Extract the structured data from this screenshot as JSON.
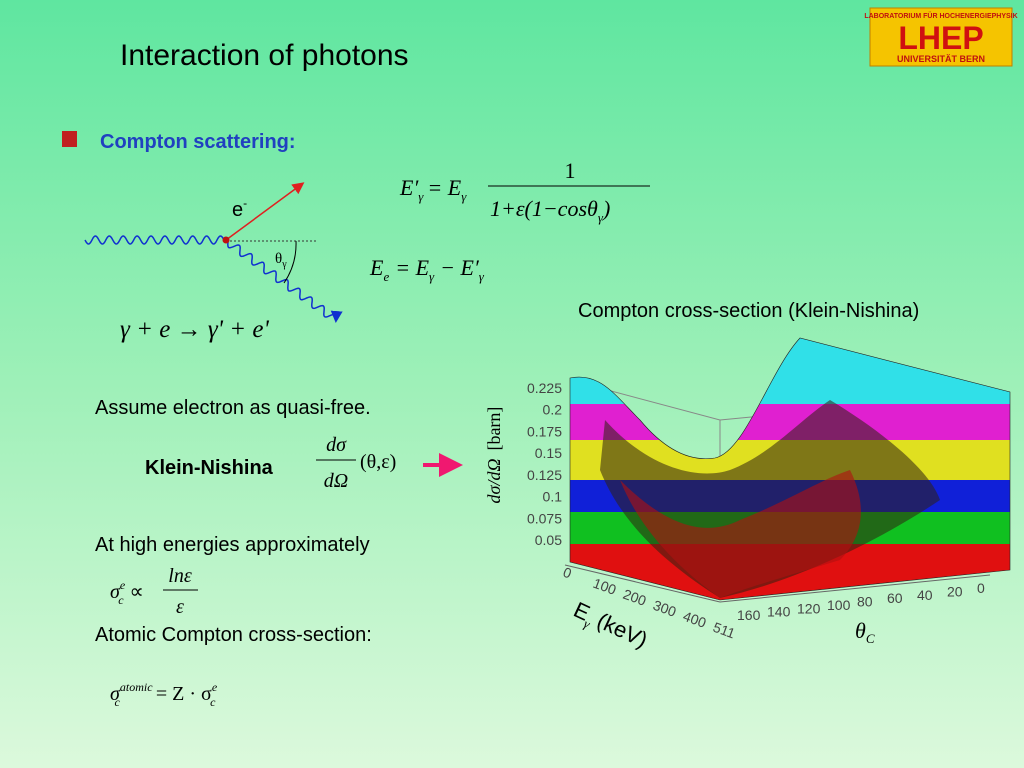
{
  "header": {
    "title": "Interaction of photons",
    "logo": {
      "top": "LABORATORIUM FÜR HOCHENERGIEPHYSIK",
      "main": "LHEP",
      "bottom": "UNIVERSITÄT BERN"
    }
  },
  "section": "Compton scattering:",
  "diagram": {
    "electron": "e",
    "electron_sup": "-",
    "angle": "θ",
    "angle_sub": "γ",
    "reaction": "γ + e → γ' + e'"
  },
  "eq_photon": {
    "lhs": "E′",
    "lhs_sub": "γ",
    "eq": "= E",
    "eq_sub": "γ",
    "numerator": "1",
    "denominator": "1+ε(1−cosθ",
    "denominator_sub": "γ",
    "denominator_end": ")"
  },
  "eq_electron": {
    "lhs": "E",
    "lhs_sub": "e",
    "mid": "= E",
    "mid_sub": "γ",
    "rhs": "− E′",
    "rhs_sub": "γ"
  },
  "plot": {
    "title": "Compton cross-section (Klein-Nishina)",
    "z_ticks": [
      "0.225",
      "0.2",
      "0.175",
      "0.15",
      "0.125",
      "0.1",
      "0.075",
      "0.05"
    ],
    "z_label": "dσ/dΩ",
    "z_unit": "[barn]",
    "energy_ticks": [
      "0",
      "100",
      "200",
      "300",
      "400",
      "511"
    ],
    "angle_ticks": [
      "160",
      "140",
      "120",
      "100",
      "80",
      "60",
      "40",
      "20",
      "0"
    ],
    "energy_label": "E",
    "energy_sub": "γ",
    "energy_unit": "(keV)",
    "angle_label": "θ",
    "angle_sub": "C"
  },
  "text": {
    "assume": "Assume electron as quasi-free.",
    "kn": "Klein-Nishina",
    "kn_num": "dσ",
    "kn_den": "dΩ",
    "kn_args": "(θ,ε)",
    "high": "At high energies approximately",
    "high_lhs": "σ",
    "high_sup": "e",
    "high_sub": "c",
    "high_prop": "∝",
    "high_num": "lnε",
    "high_den": "ε",
    "atomic": "Atomic Compton cross-section:",
    "atomic_lhs": "σ",
    "atomic_sup": "atomic",
    "atomic_sub": "c",
    "atomic_rhs": "= Z · σ",
    "atomic_rhs_sup": "e",
    "atomic_rhs_sub": "c"
  }
}
